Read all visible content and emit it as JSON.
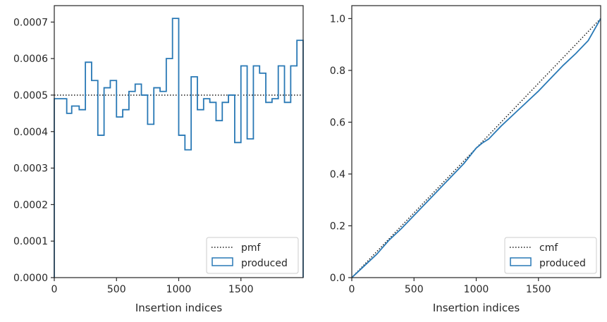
{
  "chart_data": [
    {
      "type": "step",
      "xlabel": "Insertion indices",
      "ylabel": "",
      "xlim": [
        0,
        2000
      ],
      "ylim": [
        0,
        0.000745
      ],
      "xticks": [
        0,
        500,
        1000,
        1500
      ],
      "xtick_labels": [
        "0",
        "500",
        "1000",
        "1500"
      ],
      "yticks": [
        0,
        0.0001,
        0.0002,
        0.0003,
        0.0004,
        0.0005,
        0.0006,
        0.0007
      ],
      "ytick_labels": [
        "0.0000",
        "0.0001",
        "0.0002",
        "0.0003",
        "0.0004",
        "0.0005",
        "0.0006",
        "0.0007"
      ],
      "legend": [
        "pmf",
        "produced"
      ],
      "legend_position": "lower-right",
      "series": [
        {
          "name": "pmf",
          "style": "dotted",
          "color": "#1a1a1a",
          "x": [
            0,
            2000
          ],
          "values": [
            0.0005,
            0.0005
          ]
        },
        {
          "name": "produced",
          "style": "step",
          "color": "#2878b5",
          "bin_edges": [
            0,
            100,
            140,
            200,
            250,
            300,
            350,
            400,
            450,
            500,
            550,
            600,
            650,
            700,
            750,
            800,
            850,
            900,
            950,
            1000,
            1050,
            1100,
            1150,
            1200,
            1250,
            1300,
            1350,
            1400,
            1450,
            1500,
            1550,
            1600,
            1650,
            1700,
            1750,
            1800,
            1850,
            1900,
            1950,
            2000
          ],
          "values": [
            0.00049,
            0.00045,
            0.00047,
            0.00046,
            0.00059,
            0.00054,
            0.00039,
            0.00052,
            0.00054,
            0.00044,
            0.00046,
            0.00051,
            0.00053,
            0.0005,
            0.00042,
            0.00052,
            0.00051,
            0.0006,
            0.00071,
            0.00039,
            0.00035,
            0.00055,
            0.00046,
            0.00049,
            0.00048,
            0.00043,
            0.00048,
            0.0005,
            0.00037,
            0.00058,
            0.00038,
            0.00058,
            0.00056,
            0.00048,
            0.00049,
            0.00058,
            0.00048,
            0.00058,
            0.00065
          ]
        }
      ]
    },
    {
      "type": "line",
      "xlabel": "Insertion indices",
      "ylabel": "",
      "xlim": [
        0,
        2000
      ],
      "ylim": [
        0,
        1.05
      ],
      "xticks": [
        0,
        500,
        1000,
        1500
      ],
      "xtick_labels": [
        "0",
        "500",
        "1000",
        "1500"
      ],
      "yticks": [
        0,
        0.2,
        0.4,
        0.6,
        0.8,
        1.0
      ],
      "ytick_labels": [
        "0.0",
        "0.2",
        "0.4",
        "0.6",
        "0.8",
        "1.0"
      ],
      "legend": [
        "cmf",
        "produced"
      ],
      "legend_position": "lower-right",
      "series": [
        {
          "name": "cmf",
          "style": "dotted",
          "color": "#1a1a1a",
          "x": [
            0,
            2000
          ],
          "values": [
            0,
            1.0
          ]
        },
        {
          "name": "produced",
          "style": "line",
          "color": "#2878b5",
          "x": [
            0,
            100,
            200,
            300,
            400,
            500,
            600,
            700,
            800,
            900,
            950,
            1000,
            1050,
            1100,
            1200,
            1300,
            1400,
            1500,
            1600,
            1700,
            1800,
            1900,
            2000
          ],
          "values": [
            0,
            0.045,
            0.09,
            0.145,
            0.19,
            0.24,
            0.29,
            0.34,
            0.39,
            0.44,
            0.47,
            0.5,
            0.52,
            0.535,
            0.585,
            0.63,
            0.675,
            0.72,
            0.77,
            0.82,
            0.865,
            0.915,
            1.0
          ]
        }
      ]
    }
  ]
}
